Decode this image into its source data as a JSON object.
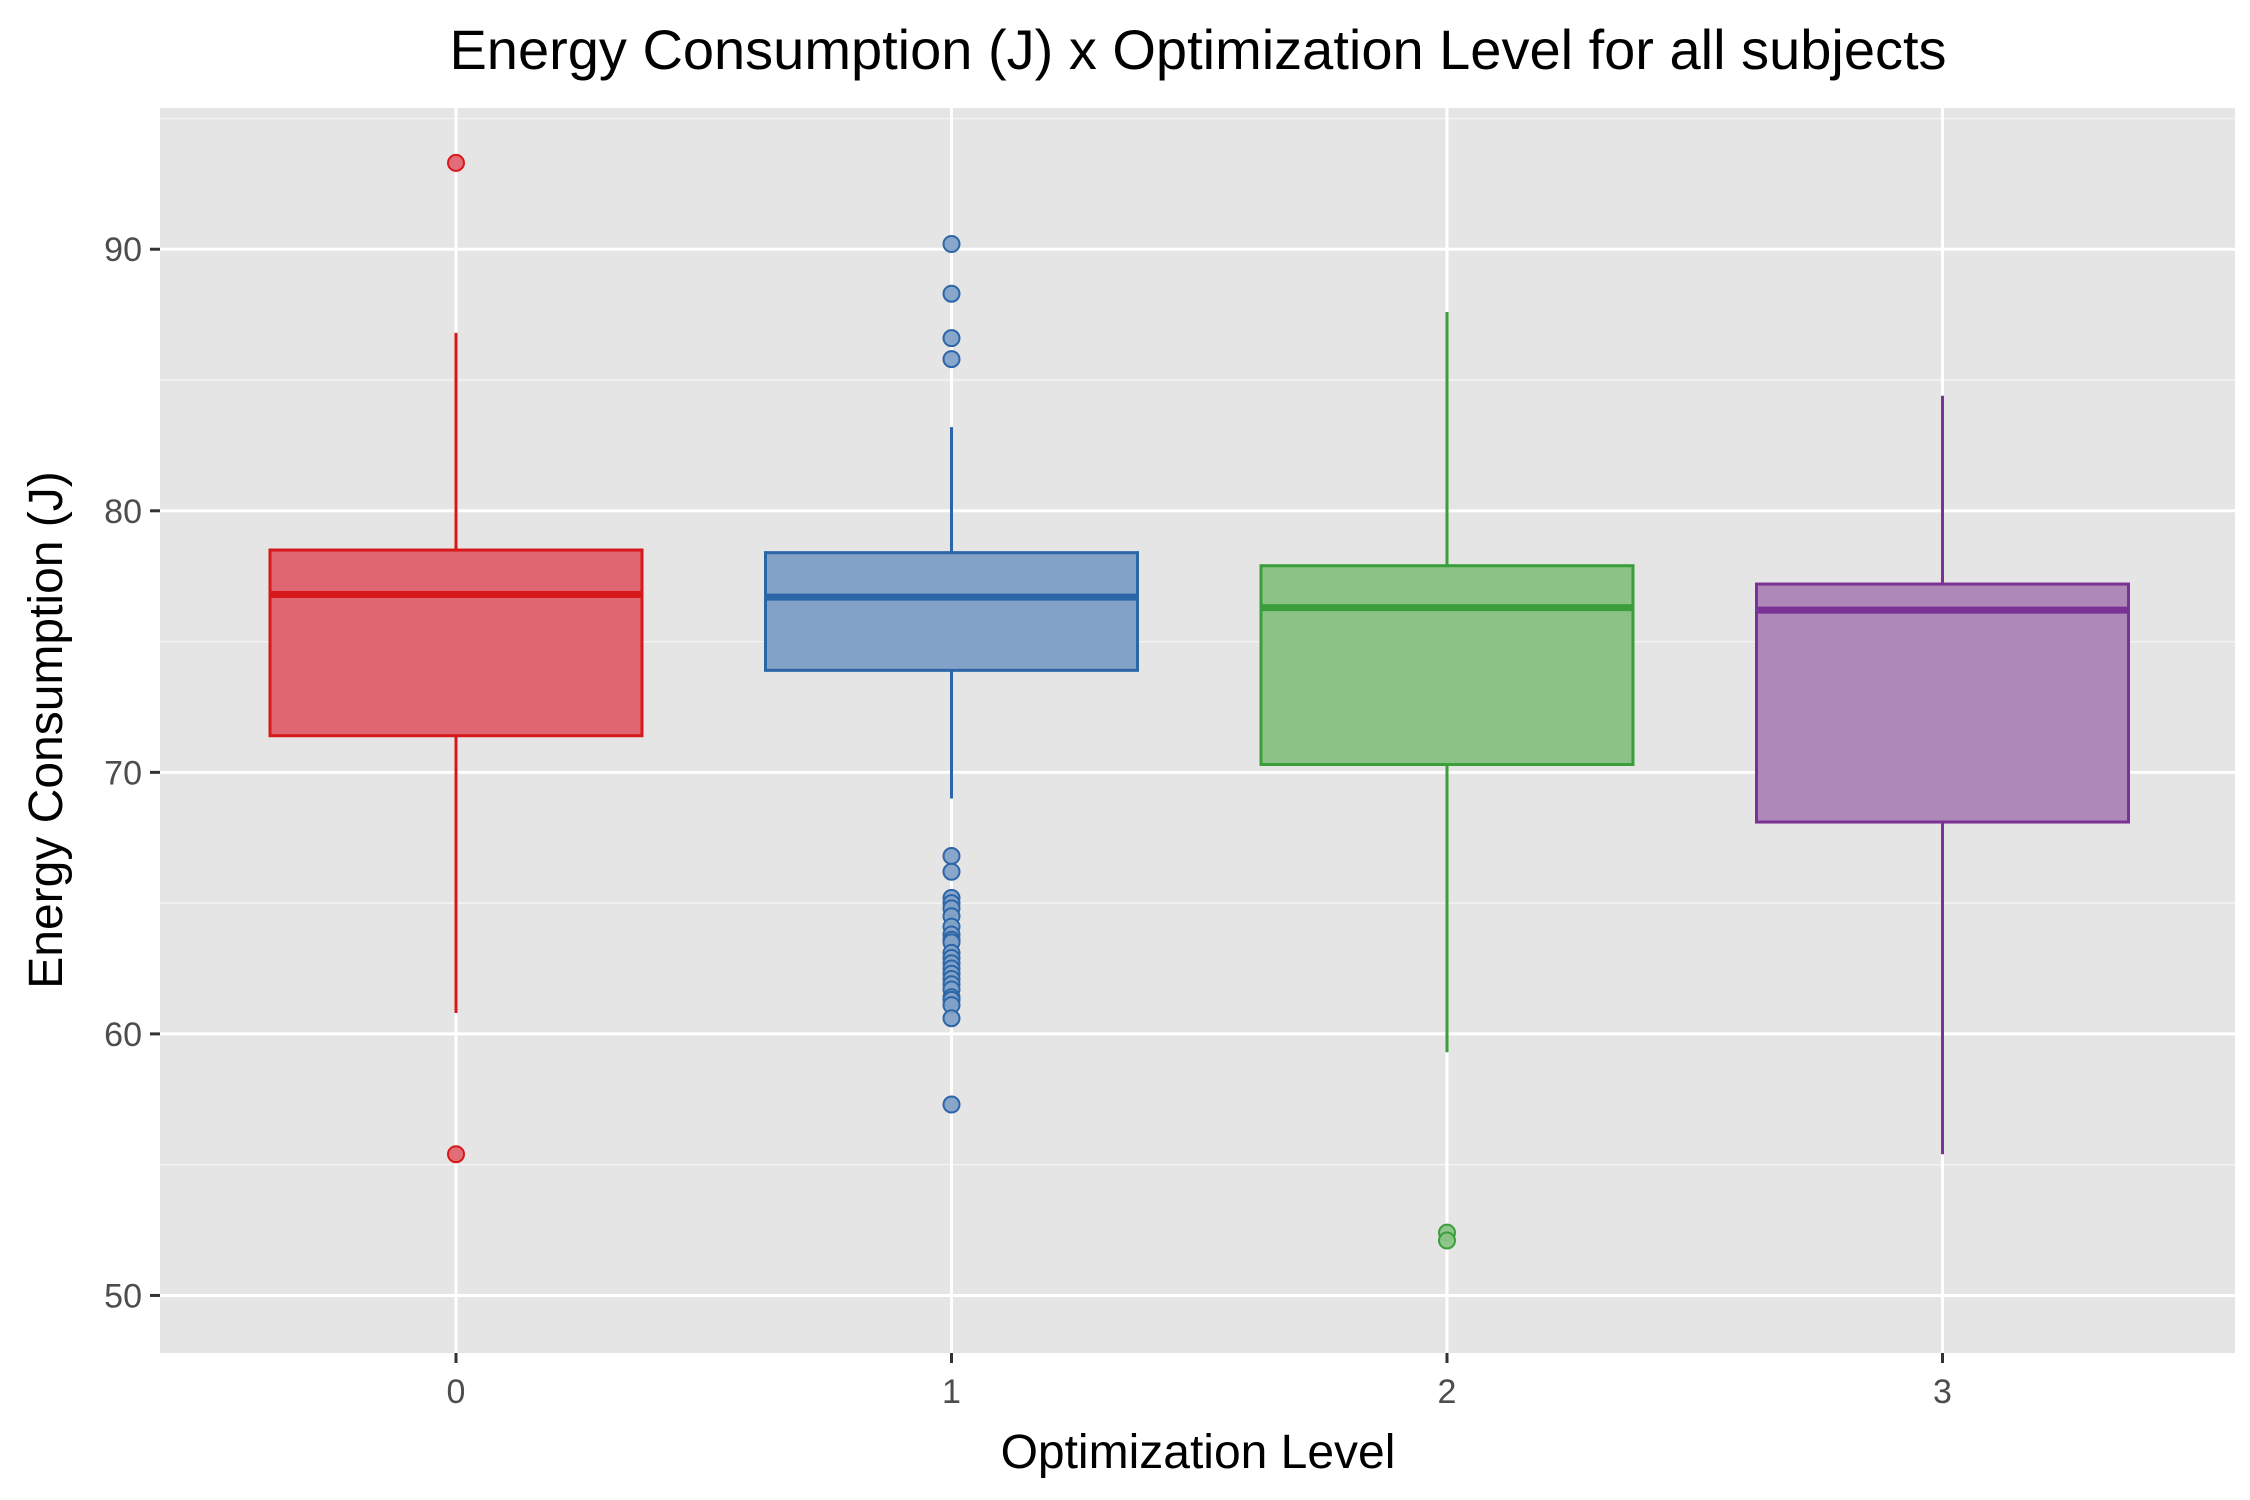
{
  "chart_data": {
    "type": "box",
    "title": "Energy Consumption (J) x Optimization Level for all subjects",
    "xlabel": "Optimization Level",
    "ylabel": "Energy Consumption (J)",
    "categories": [
      "0",
      "1",
      "2",
      "3"
    ],
    "ylim": [
      47.8,
      95.4
    ],
    "yticks": [
      50,
      60,
      70,
      80,
      90
    ],
    "grid": true,
    "legend": "none",
    "boxes": [
      {
        "category": "0",
        "color": "#d7191c",
        "fill": "#e06672",
        "whisker_low": 60.8,
        "q1": 71.4,
        "median": 76.8,
        "q3": 78.5,
        "whisker_high": 86.8,
        "outliers": [
          93.3,
          55.4
        ]
      },
      {
        "category": "1",
        "color": "#2c65a8",
        "fill": "#82a2c7",
        "whisker_low": 69.0,
        "q1": 73.9,
        "median": 76.7,
        "q3": 78.4,
        "whisker_high": 83.2,
        "outliers": [
          90.2,
          88.3,
          86.6,
          85.8,
          66.8,
          66.2,
          65.2,
          65.0,
          64.8,
          64.5,
          64.1,
          63.8,
          63.6,
          63.5,
          63.1,
          62.9,
          62.7,
          62.5,
          62.3,
          62.1,
          61.9,
          61.7,
          61.4,
          61.3,
          61.1,
          60.6,
          57.3
        ]
      },
      {
        "category": "2",
        "color": "#3a9f3a",
        "fill": "#8bc387",
        "whisker_low": 59.3,
        "q1": 70.3,
        "median": 76.3,
        "q3": 77.9,
        "whisker_high": 87.6,
        "outliers": [
          52.4,
          52.1
        ]
      },
      {
        "category": "3",
        "color": "#7b3294",
        "fill": "#ae88b8",
        "whisker_low": 55.4,
        "q1": 68.1,
        "median": 76.2,
        "q3": 77.2,
        "whisker_high": 84.4,
        "outliers": []
      }
    ]
  }
}
